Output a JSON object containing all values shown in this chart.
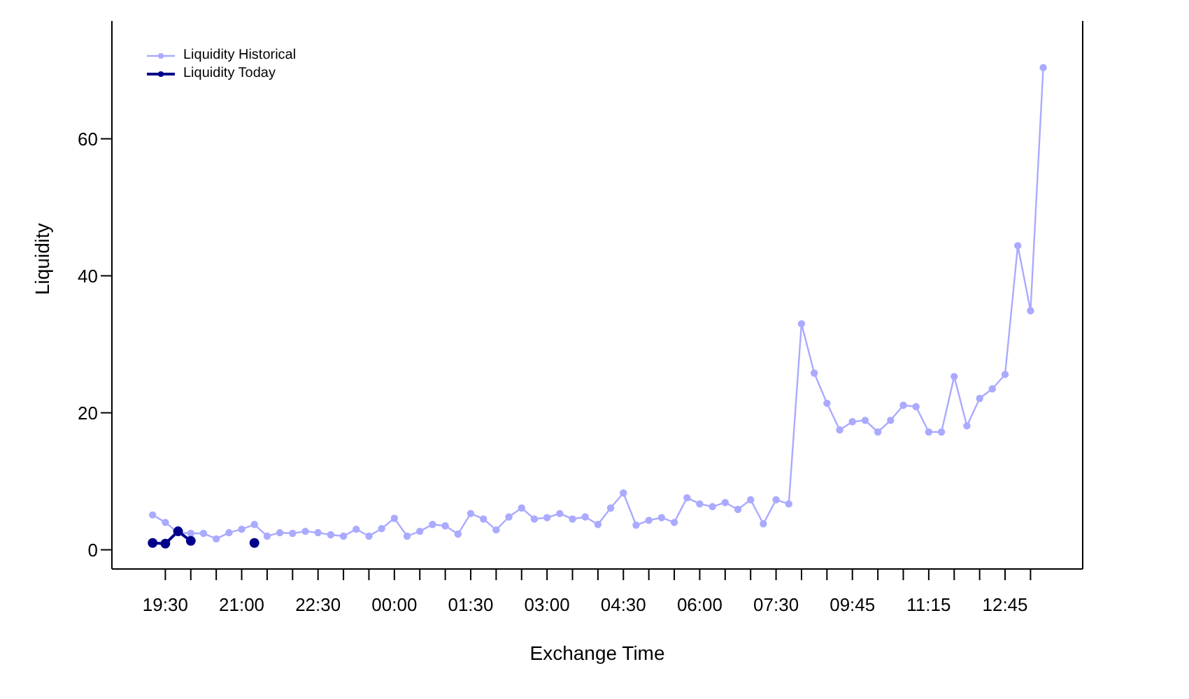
{
  "chart_data": {
    "type": "line",
    "xlabel": "Exchange Time",
    "ylabel": "Liquidity",
    "categories": [
      null,
      "19:30",
      null,
      null,
      null,
      null,
      null,
      "21:00",
      null,
      null,
      null,
      null,
      null,
      "22:30",
      null,
      null,
      null,
      null,
      null,
      "00:00",
      null,
      null,
      null,
      null,
      null,
      "01:30",
      null,
      null,
      null,
      null,
      null,
      "03:00",
      null,
      null,
      null,
      null,
      null,
      "04:30",
      null,
      null,
      null,
      null,
      null,
      "06:00",
      null,
      null,
      null,
      null,
      null,
      "07:30",
      null,
      null,
      null,
      null,
      null,
      "09:45",
      null,
      null,
      null,
      null,
      null,
      "11:15",
      null,
      null,
      null,
      null,
      null,
      "12:45",
      null,
      null,
      null
    ],
    "series": [
      {
        "name": "Liquidity Historical",
        "color": "#aaaaff",
        "values": [
          5.1,
          4.0,
          2.5,
          2.4,
          2.4,
          1.6,
          2.5,
          3.0,
          3.7,
          2.0,
          2.5,
          2.4,
          2.7,
          2.5,
          2.2,
          2.0,
          3.0,
          2.0,
          3.1,
          4.6,
          2.0,
          2.7,
          3.7,
          3.5,
          2.3,
          5.3,
          4.5,
          2.9,
          4.8,
          6.1,
          4.5,
          4.7,
          5.3,
          4.5,
          4.8,
          3.7,
          6.1,
          8.3,
          3.6,
          4.3,
          4.7,
          4.0,
          7.6,
          6.7,
          6.3,
          6.9,
          5.9,
          7.3,
          3.8,
          7.3,
          6.7,
          33.0,
          25.8,
          21.4,
          17.5,
          18.7,
          18.9,
          17.2,
          18.9,
          21.1,
          20.9,
          17.2,
          17.2,
          25.3,
          18.1,
          22.1,
          23.5,
          25.6,
          44.4,
          34.9,
          70.4
        ]
      },
      {
        "name": "Liquidity Today",
        "color": "#00008b",
        "values": [
          1.0,
          0.9,
          2.7,
          1.3,
          null,
          null,
          null,
          null,
          1.0,
          null,
          null,
          null,
          null,
          null,
          null,
          null,
          null,
          null,
          null,
          null,
          null,
          null,
          null,
          null,
          null,
          null,
          null,
          null,
          null,
          null,
          null,
          null,
          null,
          null,
          null,
          null,
          null,
          null,
          null,
          null,
          null,
          null,
          null,
          null,
          null,
          null,
          null,
          null,
          null,
          null,
          null,
          null,
          null,
          null,
          null,
          null,
          null,
          null,
          null,
          null,
          null,
          null,
          null,
          null,
          null,
          null,
          null,
          null,
          null,
          null,
          null
        ]
      }
    ],
    "ylim": [
      -2.8,
      77.2
    ],
    "yticks": [
      0,
      20,
      40,
      60
    ],
    "grid": false,
    "legend": "top left",
    "marker": "circle",
    "line_style": "solid"
  }
}
